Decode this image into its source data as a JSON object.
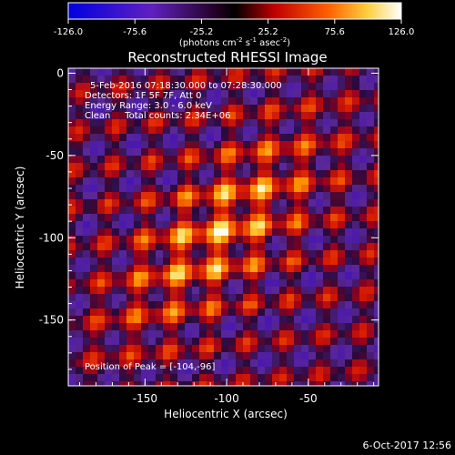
{
  "chart_data": {
    "type": "heatmap",
    "title": "Reconstructed RHESSI Image",
    "xlabel": "Heliocentric X (arcsec)",
    "ylabel": "Heliocentric Y (arcsec)",
    "xlim": [
      -197,
      -7
    ],
    "ylim": [
      -190,
      3
    ],
    "x_ticks": [
      -150,
      -100,
      -50
    ],
    "y_ticks": [
      0,
      -50,
      -100,
      -150
    ],
    "colorbar": {
      "min": -126.0,
      "max": 126.0,
      "ticks": [
        -126.0,
        -75.6,
        -25.2,
        25.2,
        75.6,
        126.0
      ],
      "tick_labels": [
        "-126.0",
        "-75.6",
        "-25.2",
        "25.2",
        "75.6",
        "126.0"
      ],
      "unit_base": "(photons cm",
      "unit_exp1": "-2",
      "unit_mid": " s",
      "unit_exp2": "-1",
      "unit_mid2": " asec",
      "unit_exp3": "-2",
      "unit_end": ")"
    },
    "annotations": {
      "time_range": "5-Feb-2016 07:18:30.000 to 07:28:30.000",
      "detectors": "Detectors: 1F 5F 7F, Att 0",
      "energy": "Energy Range: 3.0 - 6.0 keV",
      "method": "Clean     Total counts: 2.34E+06",
      "peak": "Position of Peak = [-104,-96]"
    },
    "peak_position": [
      -104,
      -96
    ]
  },
  "footer": {
    "date": "6-Oct-2017 12:56"
  }
}
